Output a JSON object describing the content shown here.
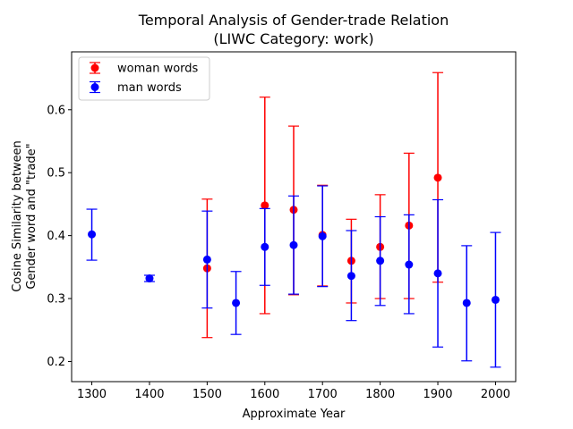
{
  "chart_data": {
    "type": "scatter",
    "title": "Temporal Analysis of Gender-trade Relation",
    "subtitle": "(LIWC Category: work)",
    "xlabel": "Approximate Year",
    "ylabel_line1": "Cosine Similarity between",
    "ylabel_line2": "Gender word and \"trade\"",
    "xlim": [
      1265,
      2035
    ],
    "ylim": [
      0.168,
      0.692
    ],
    "xticks": [
      1300,
      1400,
      1500,
      1600,
      1700,
      1800,
      1900,
      2000
    ],
    "yticks": [
      0.2,
      0.3,
      0.4,
      0.5,
      0.6
    ],
    "legend_position": "upper-left",
    "grid": false,
    "series": [
      {
        "name": "woman words",
        "color": "#ff0000",
        "points": [
          {
            "x": 1500,
            "y": 0.348,
            "low": 0.238,
            "high": 0.458
          },
          {
            "x": 1600,
            "y": 0.448,
            "low": 0.276,
            "high": 0.62
          },
          {
            "x": 1650,
            "y": 0.441,
            "low": 0.306,
            "high": 0.574
          },
          {
            "x": 1700,
            "y": 0.401,
            "low": 0.32,
            "high": 0.48
          },
          {
            "x": 1750,
            "y": 0.36,
            "low": 0.293,
            "high": 0.426
          },
          {
            "x": 1800,
            "y": 0.382,
            "low": 0.3,
            "high": 0.465
          },
          {
            "x": 1850,
            "y": 0.416,
            "low": 0.3,
            "high": 0.531
          },
          {
            "x": 1900,
            "y": 0.492,
            "low": 0.326,
            "high": 0.659
          }
        ]
      },
      {
        "name": "man words",
        "color": "#0000ff",
        "points": [
          {
            "x": 1300,
            "y": 0.402,
            "low": 0.361,
            "high": 0.442
          },
          {
            "x": 1400,
            "y": 0.332,
            "low": 0.327,
            "high": 0.337
          },
          {
            "x": 1500,
            "y": 0.362,
            "low": 0.285,
            "high": 0.439
          },
          {
            "x": 1550,
            "y": 0.293,
            "low": 0.243,
            "high": 0.343
          },
          {
            "x": 1600,
            "y": 0.382,
            "low": 0.321,
            "high": 0.443
          },
          {
            "x": 1650,
            "y": 0.385,
            "low": 0.307,
            "high": 0.463
          },
          {
            "x": 1700,
            "y": 0.399,
            "low": 0.319,
            "high": 0.479
          },
          {
            "x": 1750,
            "y": 0.336,
            "low": 0.265,
            "high": 0.408
          },
          {
            "x": 1800,
            "y": 0.36,
            "low": 0.289,
            "high": 0.43
          },
          {
            "x": 1850,
            "y": 0.354,
            "low": 0.276,
            "high": 0.433
          },
          {
            "x": 1900,
            "y": 0.34,
            "low": 0.223,
            "high": 0.457
          },
          {
            "x": 1950,
            "y": 0.293,
            "low": 0.201,
            "high": 0.384
          },
          {
            "x": 2000,
            "y": 0.298,
            "low": 0.191,
            "high": 0.405
          }
        ]
      }
    ]
  }
}
